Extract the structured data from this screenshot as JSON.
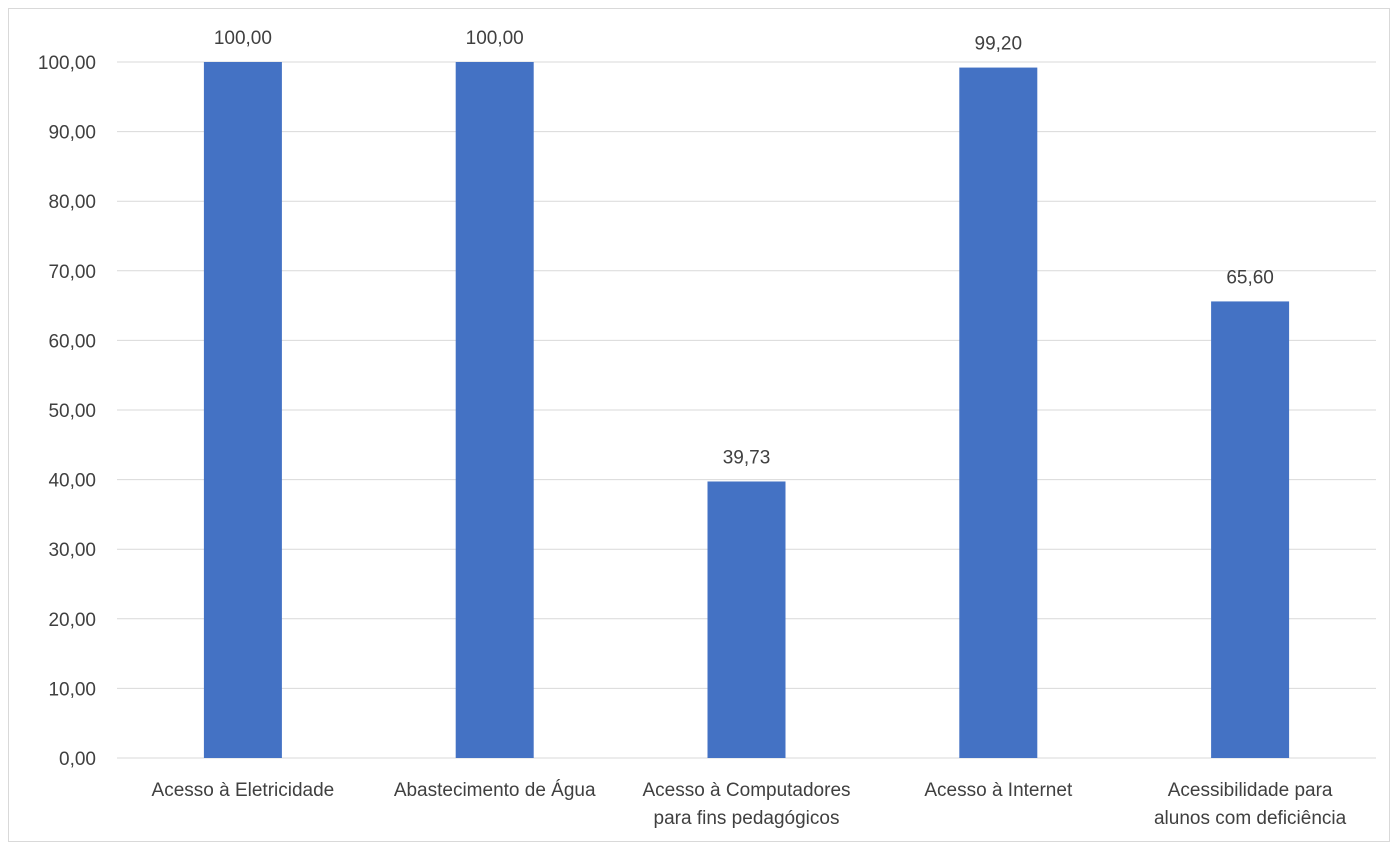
{
  "chart_data": {
    "type": "bar",
    "categories": [
      [
        "Acesso à Eletricidade"
      ],
      [
        "Abastecimento de Água"
      ],
      [
        "Acesso à Computadores",
        "para fins pedagógicos"
      ],
      [
        "Acesso à Internet"
      ],
      [
        "Acessibilidade para",
        "alunos com deficiência"
      ]
    ],
    "values": [
      100.0,
      100.0,
      39.73,
      99.2,
      65.6
    ],
    "data_labels": [
      "100,00",
      "100,00",
      "39,73",
      "99,20",
      "65,60"
    ],
    "ylim": [
      0,
      100
    ],
    "yticks": [
      "0,00",
      "10,00",
      "20,00",
      "30,00",
      "40,00",
      "50,00",
      "60,00",
      "70,00",
      "80,00",
      "90,00",
      "100,00"
    ],
    "grid": true,
    "legend": "none",
    "colors": {
      "bar": "#4472C4",
      "grid": "#d9d9d9",
      "text": "#404040"
    }
  }
}
